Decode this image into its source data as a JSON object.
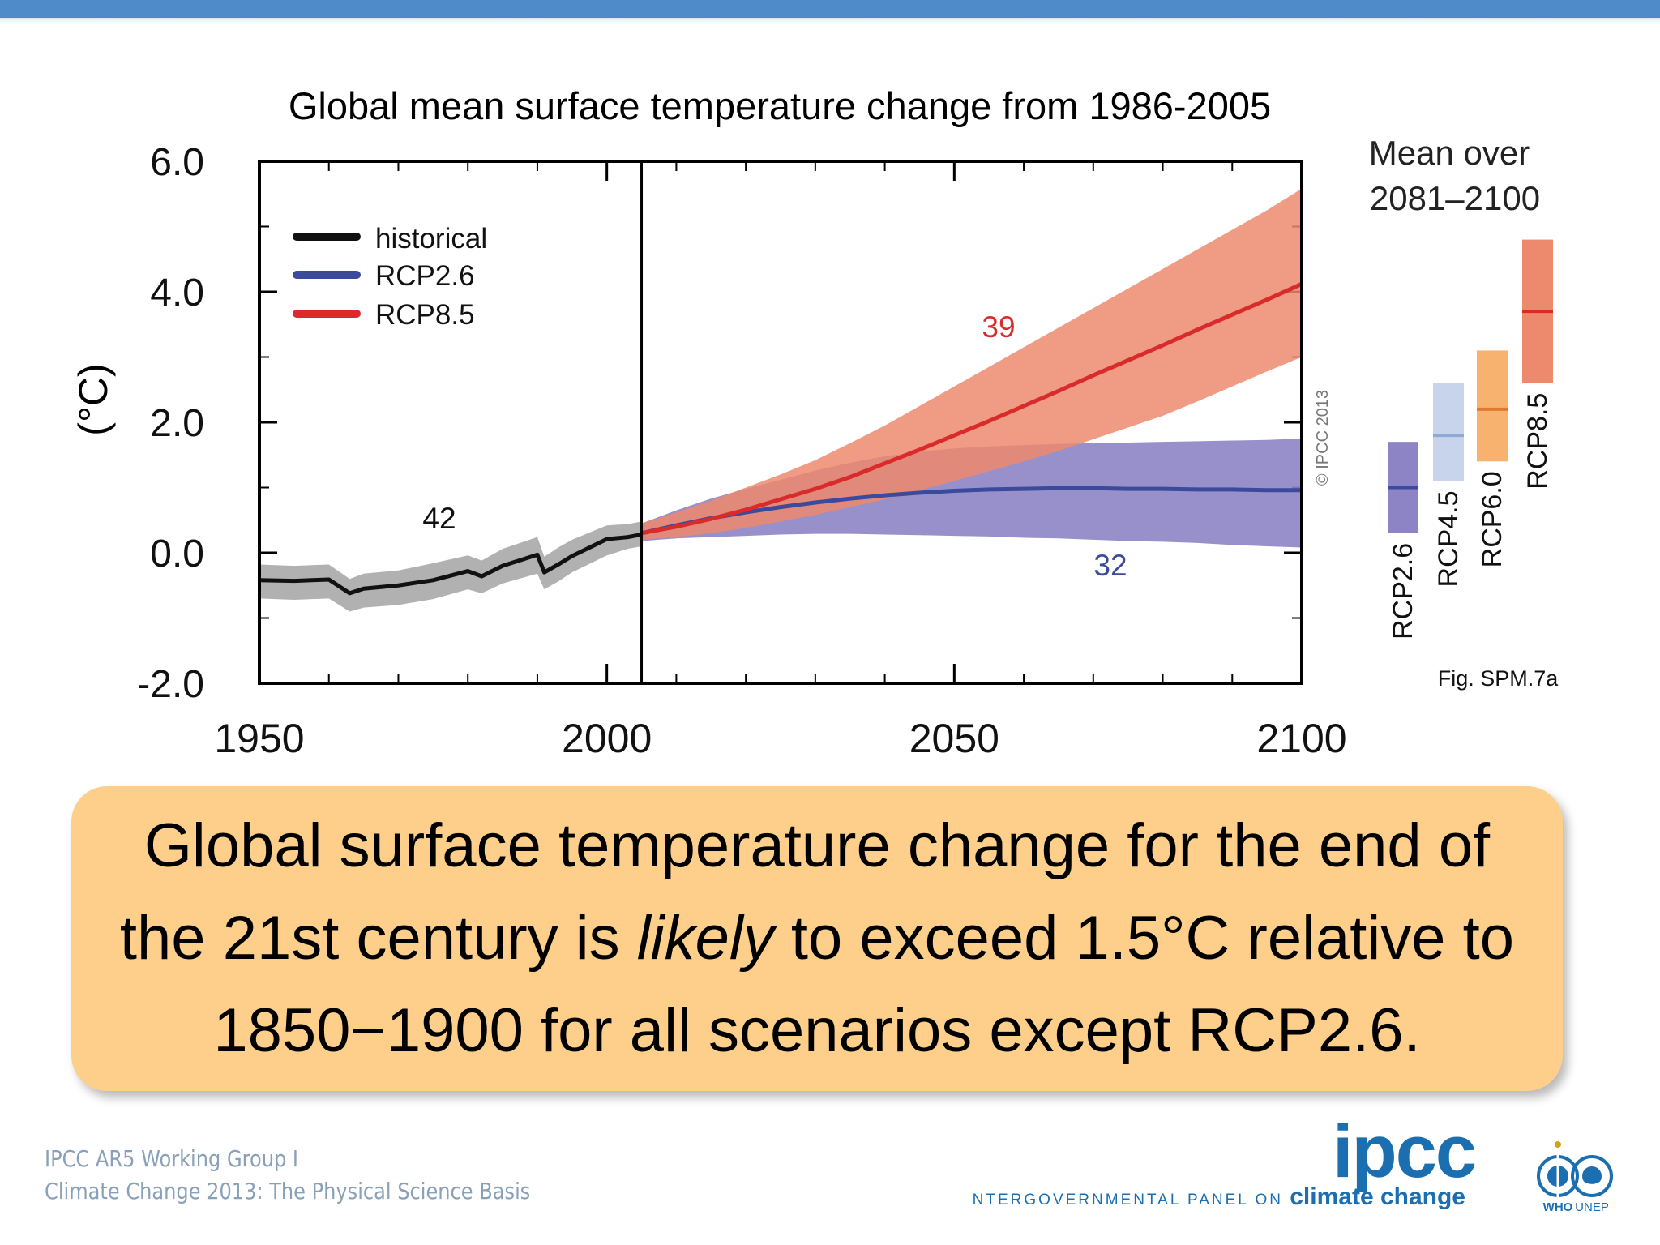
{
  "chart_data": {
    "type": "line",
    "title": "Global mean surface temperature change from 1986-2005",
    "ylabel": "(°C)",
    "xlim": [
      1950,
      2100
    ],
    "ylim": [
      -2.0,
      6.0
    ],
    "x_ticks": [
      "1950",
      "2000",
      "2050",
      "2100"
    ],
    "y_ticks": [
      "6.0",
      "4.0",
      "2.0",
      "0.0",
      "-2.0"
    ],
    "divider_year": 2005,
    "legend": {
      "position": "top-left",
      "entries": [
        {
          "name": "historical",
          "color": "#111111"
        },
        {
          "name": "RCP2.6",
          "color": "#3b4a9a"
        },
        {
          "name": "RCP8.5",
          "color": "#d92b2b"
        }
      ]
    },
    "series": [
      {
        "name": "historical",
        "color": "#111111",
        "band_color": "#a9a9a9",
        "x": [
          1950,
          1955,
          1960,
          1963,
          1965,
          1970,
          1975,
          1980,
          1982,
          1985,
          1990,
          1991,
          1993,
          1995,
          2000,
          2003,
          2005
        ],
        "values": [
          -0.42,
          -0.43,
          -0.41,
          -0.62,
          -0.55,
          -0.5,
          -0.42,
          -0.28,
          -0.36,
          -0.2,
          -0.03,
          -0.3,
          -0.18,
          -0.05,
          0.21,
          0.24,
          0.28
        ],
        "lower": [
          -0.7,
          -0.72,
          -0.7,
          -0.9,
          -0.84,
          -0.8,
          -0.71,
          -0.56,
          -0.62,
          -0.47,
          -0.32,
          -0.56,
          -0.44,
          -0.3,
          -0.04,
          0.06,
          0.1
        ],
        "upper": [
          -0.18,
          -0.2,
          -0.18,
          -0.4,
          -0.32,
          -0.27,
          -0.16,
          -0.04,
          -0.12,
          0.06,
          0.24,
          -0.06,
          0.08,
          0.2,
          0.42,
          0.44,
          0.48
        ],
        "annotation": "42"
      },
      {
        "name": "RCP2.6",
        "color": "#3b4a9a",
        "band_color": "#8c84c4",
        "x": [
          2005,
          2010,
          2015,
          2020,
          2025,
          2030,
          2035,
          2040,
          2045,
          2050,
          2055,
          2060,
          2065,
          2070,
          2075,
          2080,
          2085,
          2090,
          2095,
          2100
        ],
        "values": [
          0.3,
          0.42,
          0.53,
          0.62,
          0.7,
          0.77,
          0.83,
          0.88,
          0.92,
          0.95,
          0.97,
          0.98,
          0.99,
          0.99,
          0.98,
          0.98,
          0.97,
          0.97,
          0.96,
          0.96
        ],
        "lower": [
          0.18,
          0.22,
          0.24,
          0.26,
          0.28,
          0.29,
          0.29,
          0.28,
          0.27,
          0.26,
          0.25,
          0.23,
          0.22,
          0.2,
          0.18,
          0.17,
          0.15,
          0.12,
          0.1,
          0.08
        ],
        "upper": [
          0.45,
          0.65,
          0.83,
          0.98,
          1.12,
          1.26,
          1.38,
          1.48,
          1.55,
          1.6,
          1.63,
          1.65,
          1.67,
          1.68,
          1.69,
          1.7,
          1.71,
          1.72,
          1.73,
          1.75
        ],
        "annotation": "32"
      },
      {
        "name": "RCP8.5",
        "color": "#d92b2b",
        "band_color": "#ed8a6d",
        "x": [
          2005,
          2010,
          2015,
          2020,
          2025,
          2030,
          2035,
          2040,
          2045,
          2050,
          2055,
          2060,
          2065,
          2070,
          2075,
          2080,
          2085,
          2090,
          2095,
          2100
        ],
        "values": [
          0.3,
          0.4,
          0.52,
          0.66,
          0.82,
          0.98,
          1.16,
          1.37,
          1.58,
          1.8,
          2.02,
          2.25,
          2.48,
          2.72,
          2.95,
          3.18,
          3.42,
          3.65,
          3.88,
          4.12
        ],
        "lower": [
          0.2,
          0.24,
          0.3,
          0.38,
          0.48,
          0.58,
          0.7,
          0.82,
          0.96,
          1.1,
          1.25,
          1.4,
          1.56,
          1.74,
          1.92,
          2.1,
          2.32,
          2.55,
          2.78,
          3.0
        ],
        "upper": [
          0.45,
          0.62,
          0.8,
          1.0,
          1.2,
          1.42,
          1.68,
          1.95,
          2.25,
          2.55,
          2.85,
          3.15,
          3.45,
          3.75,
          4.05,
          4.35,
          4.65,
          4.95,
          5.25,
          5.58
        ],
        "annotation": "39"
      }
    ],
    "side_panel": {
      "title_line1": "Mean over",
      "title_line2": "2081–2100",
      "bars": [
        {
          "name": "RCP2.6",
          "low": 0.3,
          "high": 1.7,
          "mean": 1.0,
          "color": "#8c84c4",
          "mean_color": "#3b4a9a"
        },
        {
          "name": "RCP4.5",
          "low": 1.1,
          "high": 2.6,
          "mean": 1.8,
          "color": "#c7d4ec",
          "mean_color": "#8fa8d8"
        },
        {
          "name": "RCP6.0",
          "low": 1.4,
          "high": 3.1,
          "mean": 2.2,
          "color": "#f8b270",
          "mean_color": "#e07a30"
        },
        {
          "name": "RCP8.5",
          "low": 2.6,
          "high": 4.8,
          "mean": 3.7,
          "color": "#ed8a6d",
          "mean_color": "#d92b2b"
        }
      ]
    },
    "copyright": "© IPCC 2013",
    "figure_ref": "Fig. SPM.7a"
  },
  "callout": {
    "line1": "Global surface temperature change for the end of",
    "line2_before": "the 21st century is ",
    "line2_italic": "likely",
    "line2_after": " to exceed 1.5°C relative to",
    "line3": "1850−1900 for all scenarios except RCP2.6."
  },
  "footer": {
    "credit_line1": "IPCC AR5 Working Group I",
    "credit_line2": "Climate Change 2013: The Physical Science Basis",
    "logo_wordmark": "ipcc",
    "panel_name_part1": "INTERGOVERNMENTAL PANEL ON ",
    "panel_name_part2": "climate change",
    "who_label": "WHO",
    "unep_label": "UNEP",
    "colors": {
      "logo_blue": "#1b6fb0"
    }
  }
}
